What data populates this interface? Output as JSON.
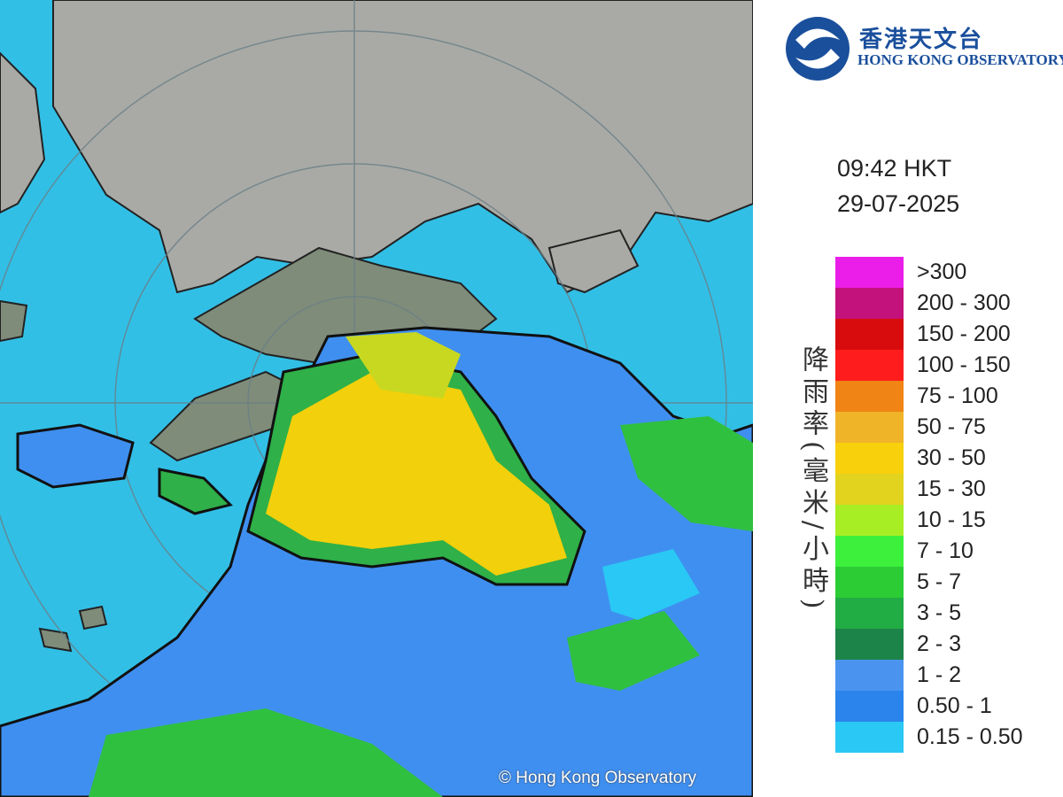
{
  "logo": {
    "chinese": "香港天文台",
    "english": "HONG KONG OBSERVATORY"
  },
  "time": "09:42 HKT",
  "date": "29-07-2025",
  "legend": {
    "title": "降雨率(毫米/小時)",
    "items": [
      {
        "label": ">300",
        "color": "#ea1ee8"
      },
      {
        "label": "200 - 300",
        "color": "#c4127c"
      },
      {
        "label": "150 - 200",
        "color": "#d80c0c"
      },
      {
        "label": "100 - 150",
        "color": "#ff1c1c"
      },
      {
        "label": "75 - 100",
        "color": "#f08414"
      },
      {
        "label": "50 - 75",
        "color": "#f0b428"
      },
      {
        "label": "30 - 50",
        "color": "#f8d00c"
      },
      {
        "label": "15 - 30",
        "color": "#e2d41e"
      },
      {
        "label": "10 - 15",
        "color": "#a8ee24"
      },
      {
        "label": "7 - 10",
        "color": "#3cf03c"
      },
      {
        "label": "5 - 7",
        "color": "#2ccc34"
      },
      {
        "label": "3 - 5",
        "color": "#22ac44"
      },
      {
        "label": "2 - 3",
        "color": "#1c8448"
      },
      {
        "label": "1 - 2",
        "color": "#4a94f0"
      },
      {
        "label": "0.50 - 1",
        "color": "#2a84ec"
      },
      {
        "label": "0.15 - 0.50",
        "color": "#2ac8f4"
      }
    ]
  },
  "copyright": "© Hong Kong Observatory"
}
